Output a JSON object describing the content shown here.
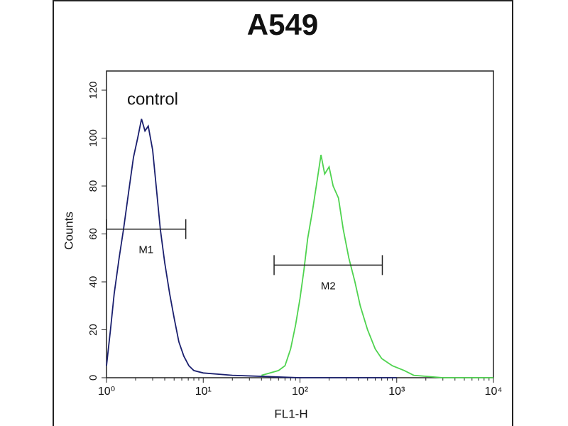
{
  "chart_data": {
    "type": "line",
    "title": "A549",
    "xlabel": "FL1-H",
    "ylabel": "Counts",
    "xscale": "log",
    "xlim": [
      1,
      10000
    ],
    "ylim": [
      0,
      128
    ],
    "xticks": [
      {
        "value": 1,
        "label": "10⁰"
      },
      {
        "value": 10,
        "label": "10¹"
      },
      {
        "value": 100,
        "label": "10²"
      },
      {
        "value": 1000,
        "label": "10³"
      },
      {
        "value": 10000,
        "label": "10⁴"
      }
    ],
    "yticks": [
      0,
      20,
      40,
      60,
      80,
      100,
      120
    ],
    "annotation": "control",
    "series": [
      {
        "color": "#1a1f6e",
        "x": [
          1.0,
          1.1,
          1.2,
          1.35,
          1.5,
          1.7,
          1.9,
          2.1,
          2.3,
          2.5,
          2.7,
          3.0,
          3.3,
          3.6,
          4.0,
          4.5,
          5.0,
          5.6,
          6.3,
          7.1,
          8,
          10,
          20,
          100,
          1000
        ],
        "values": [
          5,
          20,
          35,
          50,
          62,
          78,
          92,
          100,
          108,
          103,
          105,
          95,
          78,
          62,
          48,
          35,
          25,
          15,
          9,
          5,
          3,
          2,
          1,
          0,
          0
        ]
      },
      {
        "color": "#4fd34f",
        "x": [
          40,
          60,
          70,
          80,
          90,
          100,
          110,
          120,
          135,
          150,
          165,
          180,
          200,
          220,
          250,
          280,
          320,
          370,
          420,
          500,
          600,
          700,
          900,
          1200,
          1500,
          3000,
          10000
        ],
        "values": [
          1,
          3,
          5,
          12,
          22,
          33,
          45,
          58,
          70,
          82,
          93,
          85,
          88,
          80,
          75,
          62,
          50,
          40,
          30,
          20,
          12,
          8,
          5,
          3,
          1,
          0,
          0
        ]
      }
    ],
    "markers": [
      {
        "label": "M1",
        "x": [
          1,
          6.6
        ],
        "y": 62
      },
      {
        "label": "M2",
        "x": [
          54,
          710
        ],
        "y": 47
      }
    ]
  }
}
